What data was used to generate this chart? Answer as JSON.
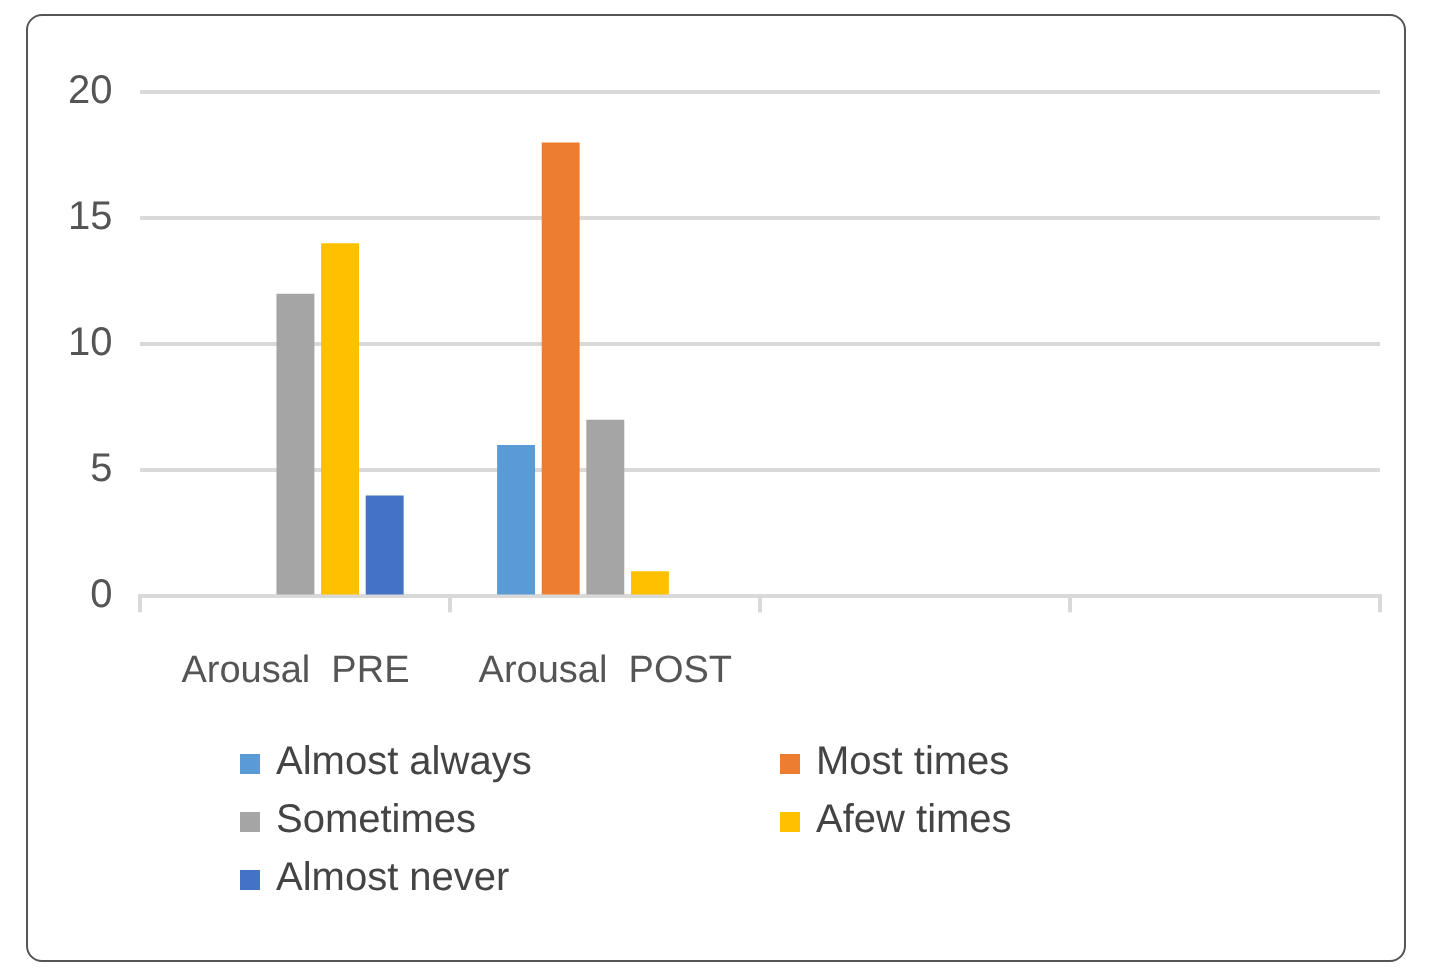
{
  "chart_data": {
    "type": "bar",
    "categories": [
      "Arousal  PRE",
      "Arousal  POST",
      null,
      null
    ],
    "series": [
      {
        "name": "Almost always",
        "color": "#5b9bd5",
        "values": [
          0,
          6,
          null,
          null
        ]
      },
      {
        "name": "Most times",
        "color": "#ed7d31",
        "values": [
          0,
          18,
          null,
          null
        ]
      },
      {
        "name": "Sometimes",
        "color": "#a5a5a5",
        "values": [
          12,
          7,
          null,
          null
        ]
      },
      {
        "name": "Afew times",
        "color": "#ffc000",
        "values": [
          14,
          1,
          null,
          null
        ]
      },
      {
        "name": "Almost never",
        "color": "#4472c4",
        "values": [
          4,
          0,
          null,
          null
        ]
      }
    ],
    "ylim": [
      0,
      20
    ],
    "yticks": [
      0,
      5,
      10,
      15,
      20
    ],
    "grid": "y",
    "legend": "bottom"
  }
}
